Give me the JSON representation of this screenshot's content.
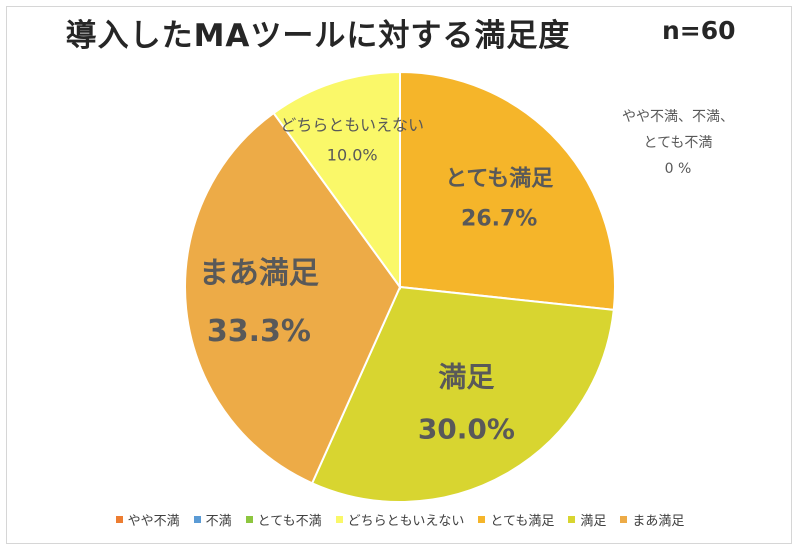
{
  "chart_data": {
    "type": "pie",
    "title": "導入したMAツールに対する満足度",
    "sample_size": "n=60",
    "slices": [
      {
        "name": "とても満足",
        "value": 26.7,
        "label": "26.7%",
        "color": "#F5B52A"
      },
      {
        "name": "満足",
        "value": 30.0,
        "label": "30.0%",
        "color": "#D8D530"
      },
      {
        "name": "まあ満足",
        "value": 33.3,
        "label": "33.3%",
        "color": "#EDAB47"
      },
      {
        "name": "どちらともいえない",
        "value": 10.0,
        "label": "10.0%",
        "color": "#FAF869"
      }
    ],
    "zero_note": [
      "やや不満、不満、",
      "とても不満",
      "0 %"
    ],
    "legend": [
      {
        "name": "やや不満",
        "color": "#ED7D31"
      },
      {
        "name": "不満",
        "color": "#5B9BD5"
      },
      {
        "name": "とても不満",
        "color": "#8DC63F"
      },
      {
        "name": "どちらともいえない",
        "color": "#FAF869"
      },
      {
        "name": "とても満足",
        "color": "#F5B52A"
      },
      {
        "name": "満足",
        "color": "#D8D530"
      },
      {
        "name": "まあ満足",
        "color": "#EDAB47"
      }
    ],
    "legend_position": "bottom"
  }
}
